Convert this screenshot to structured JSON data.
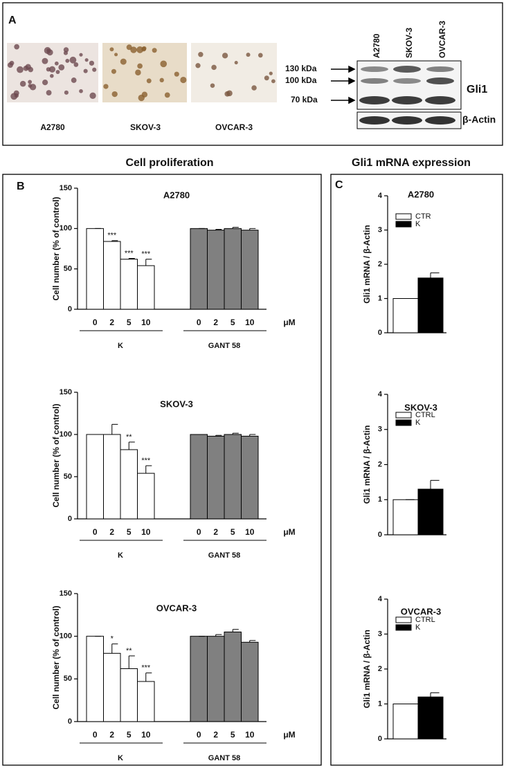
{
  "panel_a": {
    "letter": "A",
    "cell_lines": [
      "A2780",
      "SKOV-3",
      "OVCAR-3"
    ],
    "blot_lanes": [
      "A2780",
      "SKOV-3",
      "OVCAR-3"
    ],
    "markers": [
      "130 kDa",
      "100 kDa",
      "70 kDa"
    ],
    "protein": "Gli1",
    "loading": "β-Actin"
  },
  "panel_b": {
    "letter": "B",
    "heading": "Cell proliferation"
  },
  "panel_c": {
    "letter": "C",
    "heading": "Gli1 mRNA expression"
  },
  "chart_data": [
    {
      "type": "bar",
      "title": "A2780",
      "ylabel": "Cell number  (% of control)",
      "unit": "μM",
      "categories": [
        "0",
        "2",
        "5",
        "10"
      ],
      "ylim": [
        0,
        150
      ],
      "yticks": [
        0,
        50,
        100,
        150
      ],
      "series": [
        {
          "name": "K",
          "color": "#ffffff",
          "values": [
            100,
            84,
            62,
            54
          ],
          "errors": [
            0,
            1,
            1,
            8
          ],
          "significance": [
            null,
            "***",
            "***",
            "***"
          ]
        },
        {
          "name": "GANT 58",
          "color": "#808080",
          "values": [
            100,
            98,
            100,
            98
          ],
          "errors": [
            0,
            1,
            1.5,
            2
          ]
        }
      ]
    },
    {
      "type": "bar",
      "title": "SKOV-3",
      "ylabel": "Cell number (% of control)",
      "unit": "μM",
      "categories": [
        "0",
        "2",
        "5",
        "10"
      ],
      "ylim": [
        0,
        150
      ],
      "yticks": [
        0,
        50,
        100,
        150
      ],
      "series": [
        {
          "name": "K",
          "color": "#ffffff",
          "values": [
            100,
            100,
            82,
            54
          ],
          "errors": [
            0,
            12,
            9,
            9
          ],
          "significance": [
            null,
            null,
            "**",
            "***"
          ]
        },
        {
          "name": "GANT 58",
          "color": "#808080",
          "values": [
            100,
            98,
            100,
            98
          ],
          "errors": [
            0,
            1,
            1.5,
            2
          ]
        }
      ]
    },
    {
      "type": "bar",
      "title": "OVCAR-3",
      "ylabel": "Cell number (% of control)",
      "unit": "μM",
      "categories": [
        "0",
        "2",
        "5",
        "10"
      ],
      "ylim": [
        0,
        150
      ],
      "yticks": [
        0,
        50,
        100,
        150
      ],
      "series": [
        {
          "name": "K",
          "color": "#ffffff",
          "values": [
            100,
            80,
            62,
            47
          ],
          "errors": [
            0,
            11,
            15,
            10
          ],
          "significance": [
            null,
            "*",
            "**",
            "***"
          ]
        },
        {
          "name": "GANT 58",
          "color": "#808080",
          "values": [
            100,
            100,
            105,
            93
          ],
          "errors": [
            0,
            2,
            3,
            2
          ]
        }
      ]
    },
    {
      "type": "bar",
      "title": "A2780",
      "ylabel": "Gli1 mRNA / β-Actin",
      "ylim": [
        0,
        4
      ],
      "yticks": [
        0,
        1,
        2,
        3,
        4
      ],
      "series": [
        {
          "name": "CTR",
          "color": "#ffffff",
          "values": [
            1
          ],
          "errors": [
            0
          ]
        },
        {
          "name": "K",
          "color": "#000000",
          "values": [
            1.6
          ],
          "errors": [
            0.15
          ]
        }
      ]
    },
    {
      "type": "bar",
      "title": "SKOV-3",
      "ylabel": "Gli1 mRNA / β-Actin",
      "ylim": [
        0,
        4
      ],
      "yticks": [
        0,
        1,
        2,
        3,
        4
      ],
      "series": [
        {
          "name": "CTRL",
          "color": "#ffffff",
          "values": [
            1
          ],
          "errors": [
            0
          ]
        },
        {
          "name": "K",
          "color": "#000000",
          "values": [
            1.3
          ],
          "errors": [
            0.25
          ]
        }
      ]
    },
    {
      "type": "bar",
      "title": "OVCAR-3",
      "ylabel": "Gli1 mRNA / β-Actin",
      "ylim": [
        0,
        4
      ],
      "yticks": [
        0,
        1,
        2,
        3,
        4
      ],
      "series": [
        {
          "name": "CTRL",
          "color": "#ffffff",
          "values": [
            1
          ],
          "errors": [
            0
          ]
        },
        {
          "name": "K",
          "color": "#000000",
          "values": [
            1.2
          ],
          "errors": [
            0.12
          ]
        }
      ]
    }
  ]
}
